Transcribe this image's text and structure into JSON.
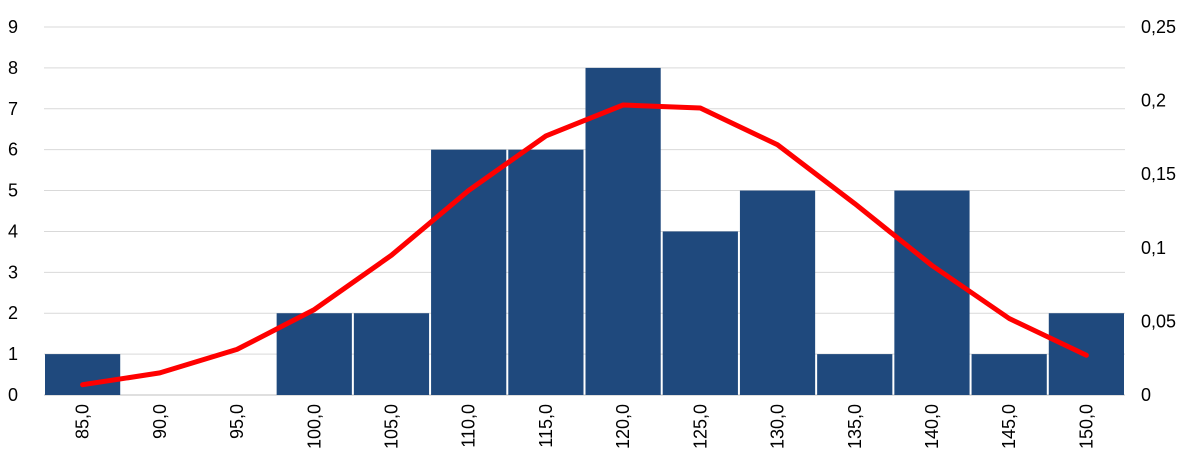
{
  "chart_data": {
    "type": "bar",
    "categories": [
      "85,0",
      "90,0",
      "95,0",
      "100,0",
      "105,0",
      "110,0",
      "115,0",
      "120,0",
      "125,0",
      "130,0",
      "135,0",
      "140,0",
      "145,0",
      "150,0"
    ],
    "series": [
      {
        "type": "bar",
        "axis": "left",
        "values": [
          1,
          0,
          0,
          2,
          2,
          6,
          6,
          8,
          4,
          5,
          1,
          5,
          1,
          2
        ]
      },
      {
        "type": "line",
        "axis": "right",
        "values": [
          0.007,
          0.015,
          0.031,
          0.058,
          0.095,
          0.139,
          0.176,
          0.197,
          0.195,
          0.17,
          0.13,
          0.088,
          0.052,
          0.027
        ]
      }
    ],
    "title": "",
    "xlabel": "",
    "ylabel": "",
    "y_left": {
      "min": 0,
      "max": 9,
      "ticks": [
        "0",
        "1",
        "2",
        "3",
        "4",
        "5",
        "6",
        "7",
        "8",
        "9"
      ]
    },
    "y_right": {
      "min": 0,
      "max": 0.25,
      "ticks": [
        "0",
        "0,05",
        "0,1",
        "0,15",
        "0,2",
        "0,25"
      ]
    },
    "grid": true,
    "legend": "none",
    "colors": {
      "bar": "#1f497d",
      "line": "#ff0000",
      "grid": "#d9d9d9"
    }
  }
}
